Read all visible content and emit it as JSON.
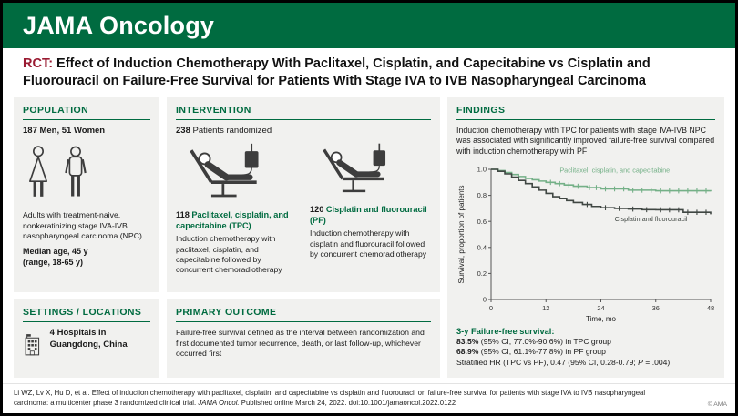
{
  "colors": {
    "brand_green": "#006B40",
    "accent_red": "#9A1B32",
    "panel_background": "#F1F1EF",
    "tpc_line_green": "#74B087",
    "pf_line_dark": "#404743"
  },
  "header": {
    "journal": "JAMA Oncology"
  },
  "title": {
    "tag": "RCT:",
    "text": " Effect of Induction Chemotherapy With Paclitaxel, Cisplatin, and Capecitabine vs Cisplatin and Fluorouracil on Failure-Free Survival for Patients With Stage IVA to IVB Nasopharyngeal Carcinoma"
  },
  "population": {
    "heading": "POPULATION",
    "men_women": "187 Men, 51 Women",
    "description": "Adults with treatment-naive, nonkeratinizing stage IVA-IVB nasopharyngeal carcinoma (NPC)",
    "median_age": "Median age, 45 y",
    "age_range": "(range, 18-65 y)"
  },
  "settings": {
    "heading": "SETTINGS / LOCATIONS",
    "text": "4 Hospitals in Guangdong, China"
  },
  "intervention": {
    "heading": "INTERVENTION",
    "randomized_count": "238",
    "randomized_text": " Patients randomized",
    "arms": [
      {
        "count": "118",
        "name": "Paclitaxel, cisplatin, and capecitabine (TPC)",
        "description": "Induction chemotherapy with paclitaxel, cisplatin, and capecitabine followed by concurrent chemoradiotherapy"
      },
      {
        "count": "120",
        "name": "Cisplatin and fluorouracil (PF)",
        "description": "Induction chemotherapy with cisplatin and fluorouracil followed by concurrent chemoradiotherapy"
      }
    ]
  },
  "primary_outcome": {
    "heading": "PRIMARY OUTCOME",
    "text": "Failure-free survival defined as the interval between randomization and first documented tumor recurrence, death, or last follow-up, whichever occurred first"
  },
  "findings": {
    "heading": "FINDINGS",
    "summary": "Induction chemotherapy with TPC for patients with stage IVA-IVB NPC was associated with significantly improved failure-free survival compared with induction chemotherapy with PF",
    "results_heading": "3-y Failure-free survival:",
    "results": [
      {
        "bold": "83.5%",
        "text": " (95% CI, 77.0%-90.6%) in TPC group"
      },
      {
        "bold": "68.9%",
        "text": " (95% CI, 61.1%-77.8%) in PF group"
      }
    ],
    "hr_line": {
      "before": "Stratified HR (TPC vs PF), 0.47 (95% CI, 0.28-0.79; ",
      "p": "P",
      "after": " = .004)"
    }
  },
  "chart_data": {
    "type": "line",
    "subtype": "kaplan-meier-step",
    "title": "",
    "xlabel": "Time, mo",
    "ylabel": "Survival, proportion of patients",
    "xlim": [
      0,
      48
    ],
    "ylim": [
      0,
      1
    ],
    "xticks": [
      0,
      12,
      24,
      36,
      48
    ],
    "yticks": [
      0,
      0.2,
      0.4,
      0.6,
      0.8,
      1.0
    ],
    "grid": false,
    "legend": "inline-labels",
    "series": [
      {
        "name": "Paclitaxel, cisplatin, and capecitabine",
        "color": "#74B087",
        "x": [
          0,
          1.5,
          3,
          4.5,
          6,
          7.5,
          9,
          10.5,
          12,
          14,
          16,
          18,
          21,
          24,
          30,
          36,
          48
        ],
        "y": [
          1.0,
          0.99,
          0.975,
          0.96,
          0.945,
          0.93,
          0.92,
          0.91,
          0.9,
          0.89,
          0.88,
          0.87,
          0.86,
          0.85,
          0.84,
          0.835,
          0.83
        ],
        "censor_x": [
          13,
          15,
          17,
          19,
          21.5,
          23,
          25,
          27,
          29,
          31,
          33,
          35,
          37,
          39,
          41,
          43,
          45,
          47
        ],
        "label_x": 15,
        "label_y": 0.975
      },
      {
        "name": "Cisplatin and fluorouracil",
        "color": "#404743",
        "x": [
          0,
          1.5,
          3,
          4.5,
          6,
          7.5,
          9,
          10.5,
          12,
          13.5,
          15,
          16.5,
          18,
          20,
          22,
          24,
          27,
          30,
          33,
          36,
          42,
          48
        ],
        "y": [
          1.0,
          0.985,
          0.965,
          0.94,
          0.915,
          0.89,
          0.865,
          0.84,
          0.815,
          0.79,
          0.775,
          0.76,
          0.745,
          0.73,
          0.715,
          0.705,
          0.7,
          0.695,
          0.69,
          0.689,
          0.67,
          0.655
        ],
        "censor_x": [
          21,
          25,
          28,
          31,
          34,
          37,
          39,
          41,
          43,
          45,
          47
        ],
        "label_x": 27,
        "label_y": 0.6
      }
    ]
  },
  "footer": {
    "citation_before": "Li WZ, Lv X, Hu D, et al. Effect of induction chemotherapy with paclitaxel, cisplatin, and capecitabine vs cisplatin and fluorouracil on failure-free survival for patients with stage IVA to IVB nasopharyngeal carcinoma: a multicenter phase 3 randomized clinical trial. ",
    "citation_italic": "JAMA Oncol.",
    "citation_after": " Published online March 24, 2022. doi:10.1001/jamaoncol.2022.0122",
    "copyright": "© AMA"
  }
}
